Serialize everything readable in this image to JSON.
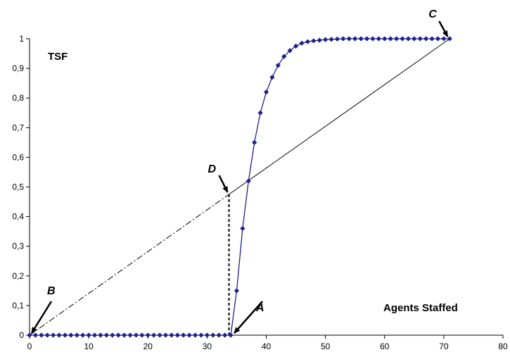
{
  "chart_data": {
    "type": "line",
    "title": "",
    "ylabel": "TSF",
    "xlabel": "Agents Staffed",
    "xlim": [
      0,
      80
    ],
    "ylim": [
      0,
      1
    ],
    "x_ticks": [
      0,
      10,
      20,
      30,
      40,
      50,
      60,
      70,
      80
    ],
    "y_ticks": [
      "0",
      "0,1",
      "0,2",
      "0,3",
      "0,4",
      "0,5",
      "0,6",
      "0,7",
      "0,8",
      "0,9",
      "1"
    ],
    "y_tick_values": [
      0,
      0.1,
      0.2,
      0.3,
      0.4,
      0.5,
      0.6,
      0.7,
      0.8,
      0.9,
      1.0
    ],
    "grid": false,
    "legend": "none",
    "series": [
      {
        "color": "#1f1f8c",
        "marker": "diamond",
        "x": [
          0,
          1,
          2,
          3,
          4,
          5,
          6,
          7,
          8,
          9,
          10,
          11,
          12,
          13,
          14,
          15,
          16,
          17,
          18,
          19,
          20,
          21,
          22,
          23,
          24,
          25,
          26,
          27,
          28,
          29,
          30,
          31,
          32,
          33,
          34,
          35,
          36,
          37,
          38,
          39,
          40,
          41,
          42,
          43,
          44,
          45,
          46,
          47,
          48,
          49,
          50,
          51,
          52,
          53,
          54,
          55,
          56,
          57,
          58,
          59,
          60,
          61,
          62,
          63,
          64,
          65,
          66,
          67,
          68,
          69,
          70,
          71
        ],
        "y": [
          0,
          0,
          0,
          0,
          0,
          0,
          0,
          0,
          0,
          0,
          0,
          0,
          0,
          0,
          0,
          0,
          0,
          0,
          0,
          0,
          0,
          0,
          0,
          0,
          0,
          0,
          0,
          0,
          0,
          0,
          0,
          0,
          0,
          0,
          0,
          0.15,
          0.36,
          0.52,
          0.65,
          0.75,
          0.82,
          0.87,
          0.91,
          0.94,
          0.96,
          0.975,
          0.985,
          0.99,
          0.993,
          0.995,
          0.997,
          0.998,
          0.999,
          1,
          1,
          1,
          1,
          1,
          1,
          1,
          1,
          1,
          1,
          1,
          1,
          1,
          1,
          1,
          1,
          1,
          1,
          1
        ]
      }
    ],
    "reference_lines": [
      {
        "style": "solid",
        "x": [
          33.7,
          71
        ],
        "y": [
          0.475,
          1
        ]
      },
      {
        "style": "dashdot",
        "x": [
          0,
          33.7
        ],
        "y": [
          0,
          0.475
        ]
      },
      {
        "style": "dashed",
        "x": [
          33.7,
          33.7
        ],
        "y": [
          0,
          0.475
        ]
      }
    ],
    "annotations": [
      {
        "label": "A",
        "target_x": 34,
        "target_y": 0
      },
      {
        "label": "B",
        "target_x": 0,
        "target_y": 0
      },
      {
        "label": "C",
        "target_x": 71,
        "target_y": 1
      },
      {
        "label": "D",
        "target_x": 33.7,
        "target_y": 0.475
      }
    ]
  }
}
